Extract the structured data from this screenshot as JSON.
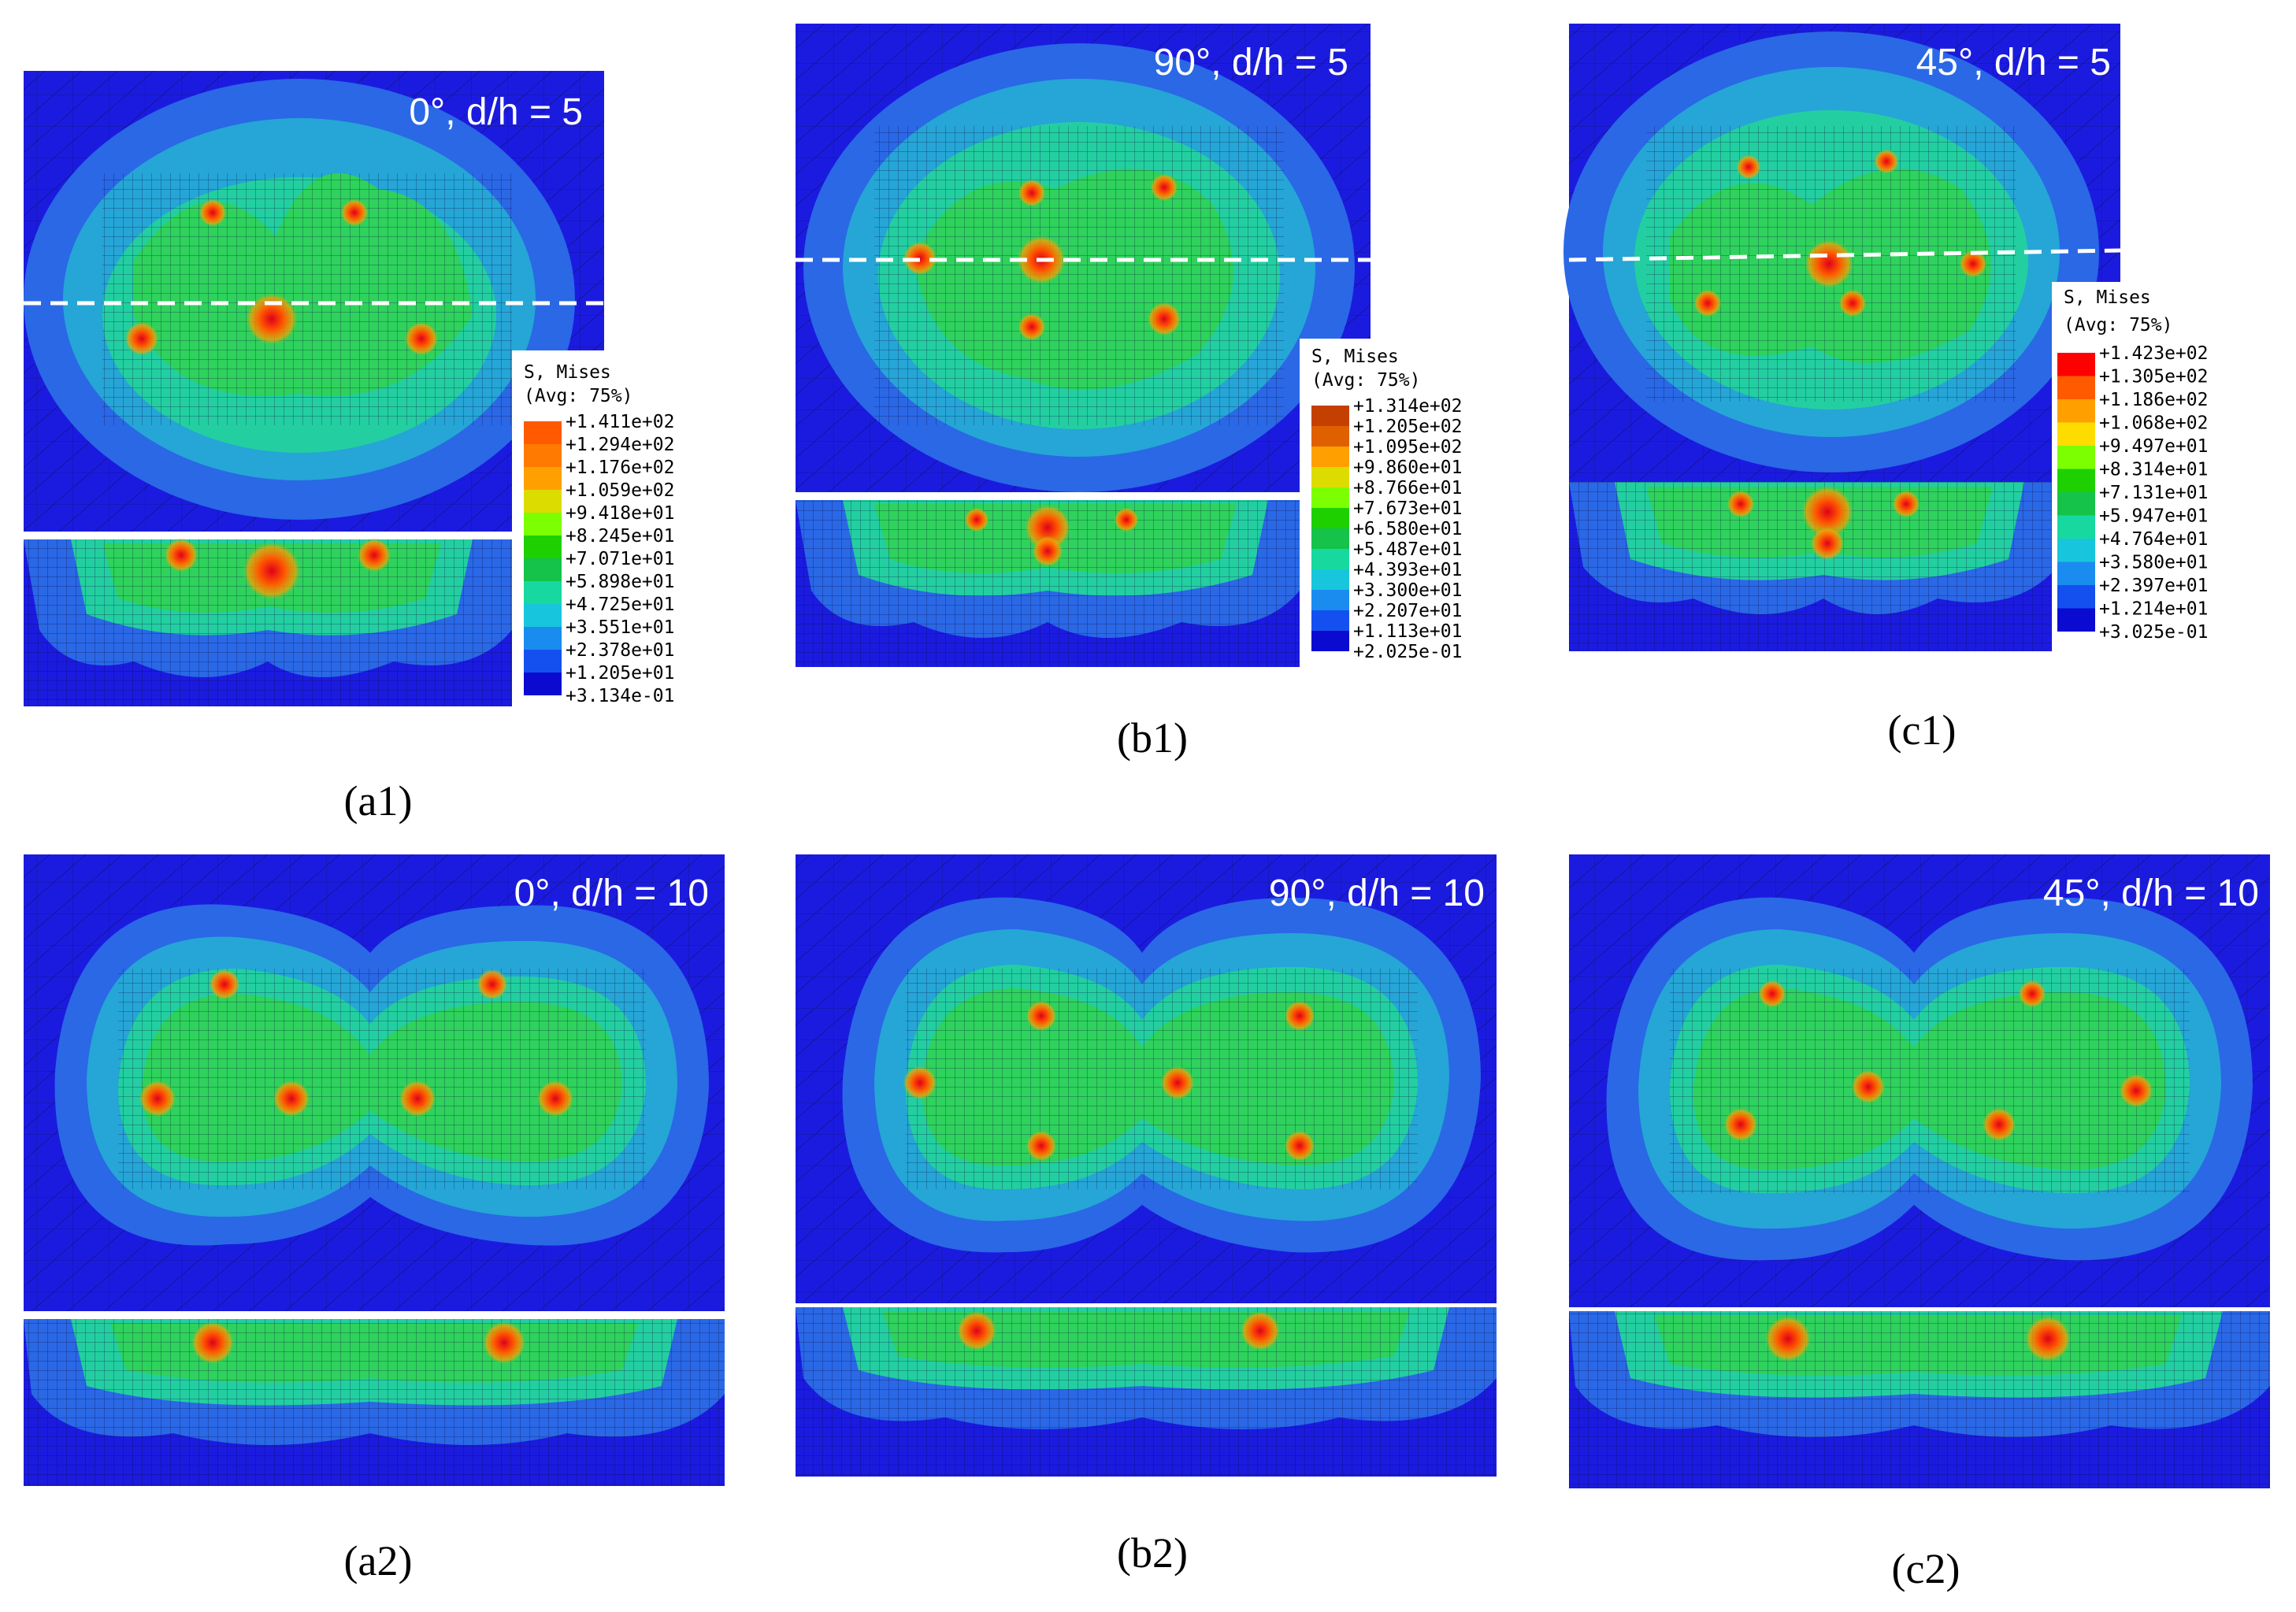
{
  "legend_colors": [
    "#ff0000",
    "#ff5a00",
    "#ffa000",
    "#ffdc00",
    "#dcff00",
    "#7cff00",
    "#1ed000",
    "#15c24a",
    "#17d9a0",
    "#17c6dc",
    "#1a8cf0",
    "#1450f0",
    "#0a0ad0"
  ],
  "field_colors": {
    "background": "#1b1be0",
    "outer": "#2a68e6",
    "mid": "#25a6d6",
    "inner": "#23cfa0",
    "core": "#2ed25c",
    "hot": "#ff5a00",
    "peak": "#e0001a",
    "mesh": "#0b0b40",
    "cut_line": "#ffffff"
  },
  "panels": [
    {
      "title": "0°, d/h = 5",
      "caption": "(a1)",
      "legend": {
        "label": "S, Mises",
        "avg": "(Avg: 75%)",
        "values": [
          "+1.411e+02",
          "+1.294e+02",
          "+1.176e+02",
          "+1.059e+02",
          "+9.418e+01",
          "+8.245e+01",
          "+7.071e+01",
          "+5.898e+01",
          "+4.725e+01",
          "+3.551e+01",
          "+2.378e+01",
          "+1.205e+01",
          "+3.134e-01"
        ]
      }
    },
    {
      "title": "90°, d/h = 5",
      "caption": "(b1)",
      "legend": {
        "label": "S, Mises",
        "avg": "(Avg: 75%)",
        "values": [
          "+1.314e+02",
          "+1.205e+02",
          "+1.095e+02",
          "+9.860e+01",
          "+8.766e+01",
          "+7.673e+01",
          "+6.580e+01",
          "+5.487e+01",
          "+4.393e+01",
          "+3.300e+01",
          "+2.207e+01",
          "+1.113e+01",
          "+2.025e-01"
        ]
      }
    },
    {
      "title": "45°, d/h = 5",
      "caption": "(c1)",
      "legend": {
        "label": "S, Mises",
        "avg": "(Avg: 75%)",
        "values": [
          "+1.423e+02",
          "+1.305e+02",
          "+1.186e+02",
          "+1.068e+02",
          "+9.497e+01",
          "+8.314e+01",
          "+7.131e+01",
          "+5.947e+01",
          "+4.764e+01",
          "+3.580e+01",
          "+2.397e+01",
          "+1.214e+01",
          "+3.025e-01"
        ]
      }
    },
    {
      "title": "0°, d/h = 10",
      "caption": "(a2)"
    },
    {
      "title": "90°, d/h = 10",
      "caption": "(b2)"
    },
    {
      "title": "45°, d/h = 10",
      "caption": "(c2)"
    }
  ]
}
